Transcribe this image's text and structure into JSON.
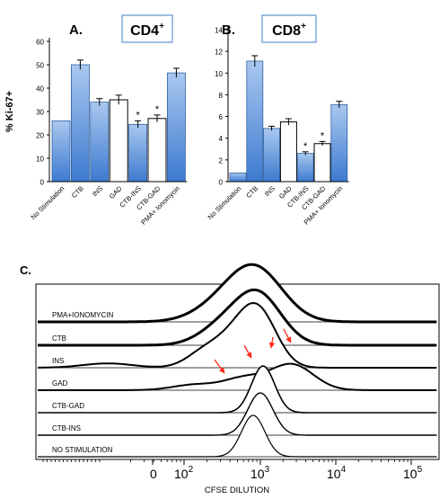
{
  "chart_data": [
    {
      "type": "bar",
      "panel_label": "A.",
      "title": "CD4",
      "title_sup": "+",
      "ylabel": "% Ki-67+",
      "ylim": [
        0,
        60
      ],
      "yticks": [
        0,
        10,
        20,
        30,
        40,
        50,
        60
      ],
      "categories": [
        "No Stimulation",
        "CTB",
        "INS",
        "GAD",
        "CTB-INS",
        "CTB-GAD",
        "PMA+ Ionomycin"
      ],
      "values": [
        26,
        50,
        34,
        35,
        24.5,
        27,
        46.5
      ],
      "errors": [
        0,
        2,
        1.5,
        2,
        1.5,
        1.5,
        2
      ],
      "bar_styles": [
        "blue",
        "blue",
        "blue",
        "white",
        "blue",
        "white",
        "blue"
      ],
      "significance": [
        "",
        "",
        "",
        "",
        "*",
        "*",
        ""
      ],
      "colors": {
        "bar_top": "#a9c8ef",
        "bar_bottom": "#3d7ad0",
        "edge": "#2f5f9f"
      }
    },
    {
      "type": "bar",
      "panel_label": "B.",
      "title": "CD8",
      "title_sup": "+",
      "ylabel": "",
      "ylim": [
        0,
        14
      ],
      "yticks": [
        0,
        2,
        4,
        6,
        8,
        10,
        12,
        14
      ],
      "categories": [
        "No Stimulation",
        "CTB",
        "INS",
        "GAD",
        "CTB-INS",
        "CTB-GAD",
        "PMA+ Ionomycin"
      ],
      "values": [
        0.8,
        11.1,
        4.9,
        5.5,
        2.6,
        3.5,
        7.1
      ],
      "errors": [
        0,
        0.5,
        0.2,
        0.3,
        0.15,
        0.2,
        0.3
      ],
      "bar_styles": [
        "blue",
        "blue",
        "blue",
        "white",
        "blue",
        "white",
        "blue"
      ],
      "significance": [
        "",
        "",
        "",
        "",
        "*",
        "*",
        ""
      ],
      "colors": {
        "bar_top": "#a9c8ef",
        "bar_bottom": "#3d7ad0",
        "edge": "#2f5f9f"
      }
    },
    {
      "type": "area",
      "panel_label": "C.",
      "xlabel": "CFSE DILUTION",
      "x_ticks": [
        {
          "label": "0",
          "sup": ""
        },
        {
          "label": "10",
          "sup": "2"
        },
        {
          "label": "10",
          "sup": "3"
        },
        {
          "label": "10",
          "sup": "4"
        },
        {
          "label": "10",
          "sup": "5"
        }
      ],
      "series": [
        {
          "name": "PMA+IONOMYCIN",
          "thickness": 3
        },
        {
          "name": "CTB",
          "thickness": 3
        },
        {
          "name": "INS",
          "thickness": 2
        },
        {
          "name": "GAD",
          "thickness": 2
        },
        {
          "name": "CTB-GAD",
          "thickness": 1.6
        },
        {
          "name": "CTB-INS",
          "thickness": 1.4
        },
        {
          "name": "NO STIMULATION",
          "thickness": 1.2
        }
      ],
      "annotation_color": "#ff2a1a"
    }
  ]
}
